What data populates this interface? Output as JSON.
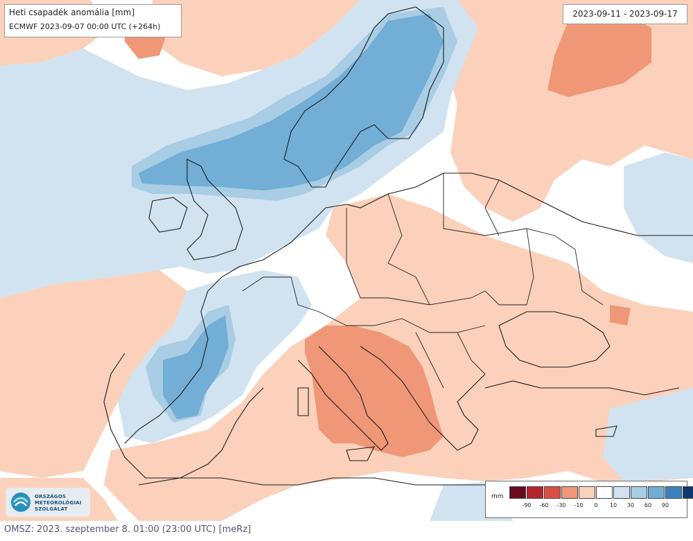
{
  "map": {
    "title": "Heti csapadék anomália [mm]",
    "model_run": "ECMWF 2023-09-07 00:00 UTC (+264h)",
    "period": "2023-09-11 - 2023-09-17",
    "region": "Europe",
    "map_type": "weekly precipitation anomaly (filled contours)",
    "wet_regions": [
      "Norway",
      "Sweden",
      "British Isles",
      "France",
      "Benelux",
      "North Sea"
    ],
    "dry_regions": [
      "Italy",
      "Balkans",
      "Ukraine",
      "Russia"
    ],
    "legend": {
      "unit": "mm",
      "colors": [
        "#6b0a1f",
        "#b52530",
        "#d94f45",
        "#ef9777",
        "#fbd1bb",
        "#ffffff",
        "#d1e3f0",
        "#a8cde4",
        "#72aed5",
        "#3c81bd",
        "#10376e"
      ],
      "tick_labels": [
        "-90",
        "-60",
        "-30",
        "-10",
        "0",
        "10",
        "30",
        "60",
        "90"
      ]
    }
  },
  "branding": {
    "logo_lines": [
      "ORSZÁGOS",
      "METEOROLÓGIAI",
      "SZOLGÁLAT"
    ],
    "caption": "OMSZ: 2023. szeptember 8. 01:00 (23:00  UTC)  [meRz]"
  }
}
